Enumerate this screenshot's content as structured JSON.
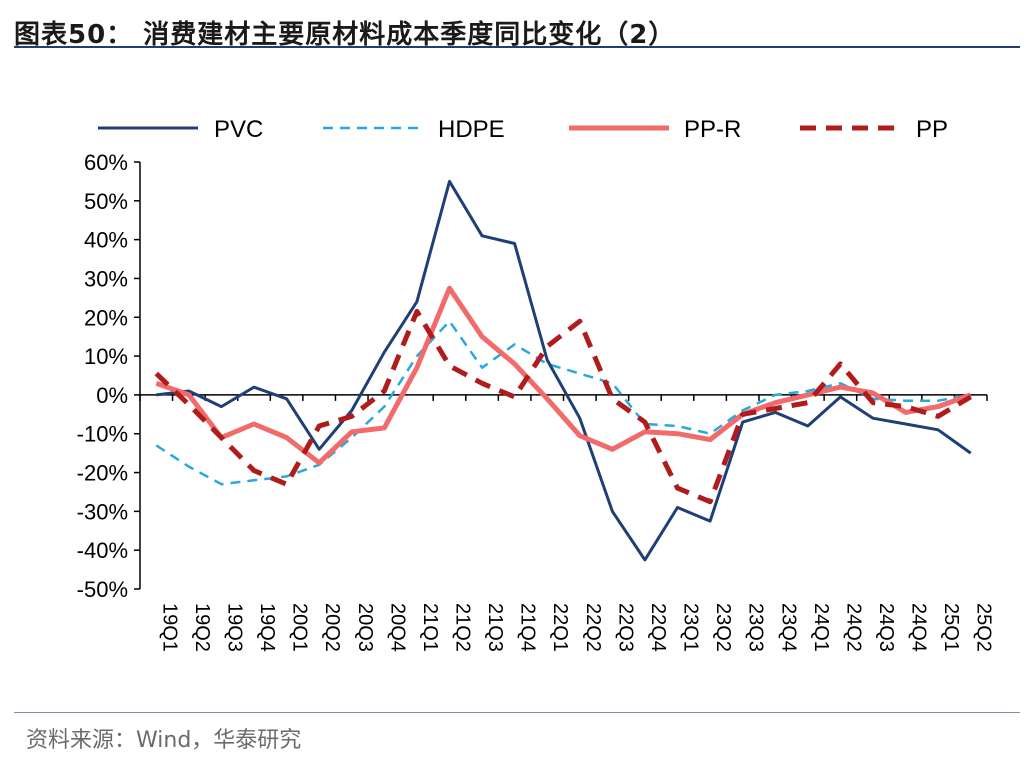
{
  "header": {
    "title": "图表50： 消费建材主要原材料成本季度同比变化（2）"
  },
  "footer": {
    "source": "资料来源：Wind，华泰研究"
  },
  "chart_data": {
    "type": "line",
    "title": "图表50： 消费建材主要原材料成本季度同比变化（2）",
    "xlabel": "",
    "ylabel": "",
    "categories": [
      "19Q1",
      "19Q2",
      "19Q3",
      "19Q4",
      "20Q1",
      "20Q2",
      "20Q3",
      "20Q4",
      "21Q1",
      "21Q2",
      "21Q3",
      "21Q4",
      "22Q1",
      "22Q2",
      "22Q3",
      "22Q4",
      "23Q1",
      "23Q2",
      "23Q3",
      "23Q4",
      "24Q1",
      "24Q2",
      "24Q3",
      "24Q4",
      "25Q1",
      "25Q2"
    ],
    "y_ticks": [
      "60%",
      "50%",
      "40%",
      "30%",
      "20%",
      "10%",
      "0%",
      "-10%",
      "-20%",
      "-30%",
      "-40%",
      "-50%"
    ],
    "ylim": [
      -50,
      60
    ],
    "legend_position": "top",
    "series": [
      {
        "name": "PVC",
        "color": "#1f3f77",
        "style": "solid",
        "values": [
          0,
          1,
          -3,
          2,
          -1,
          -14,
          -4,
          11,
          24,
          55,
          41,
          39,
          9,
          -6,
          -30,
          -42.5,
          -29,
          -32.5,
          -7,
          -4.5,
          -8,
          -0.5,
          -6,
          -7.5,
          -9,
          -15
        ]
      },
      {
        "name": "HDPE",
        "color": "#29a8e0",
        "style": "dash",
        "values": [
          -13,
          -18.5,
          -23,
          -22,
          -21,
          -18,
          -11,
          -3,
          10,
          19,
          7,
          13,
          8,
          5.5,
          3,
          -7.5,
          -8,
          -10,
          -4,
          0,
          1,
          3,
          -1,
          -1.5,
          -1.5,
          0
        ]
      },
      {
        "name": "PP-R",
        "color": "#f26b6b",
        "style": "solid-thick",
        "values": [
          3,
          0,
          -11,
          -7.5,
          -11,
          -17.5,
          -9.5,
          -8.5,
          7,
          27.5,
          15,
          8,
          -1,
          -10.5,
          -14,
          -9.5,
          -10,
          -11.5,
          -5,
          -2,
          0,
          2,
          0.5,
          -4.5,
          -3,
          0
        ]
      },
      {
        "name": "PP",
        "color": "#b01c1c",
        "style": "dash-thick",
        "values": [
          5.5,
          -2.5,
          -11,
          -19.5,
          -23,
          -8,
          -5.5,
          1,
          21.5,
          7.5,
          3,
          -0.5,
          12.5,
          19,
          -1,
          -7,
          -24,
          -27.5,
          -5,
          -3.5,
          -2,
          8,
          -2,
          -3,
          -5.5,
          -0.5
        ]
      }
    ]
  }
}
